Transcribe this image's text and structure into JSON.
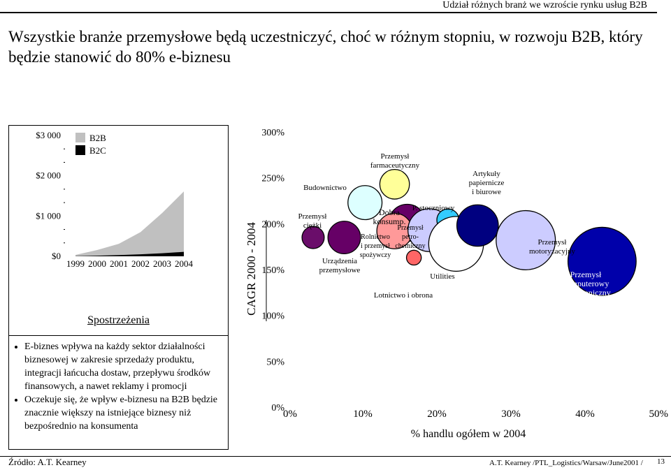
{
  "header": {
    "title": "Udział różnych branż we wzroście rynku usług B2B"
  },
  "slide": {
    "title": "Wszystkie branże przemysłowe będą uczestniczyć, choć w różnym stopniu, w rozwoju B2B, który będzie stanowić do 80% e-biznesu"
  },
  "insights": {
    "title": "Spostrzeżenia",
    "bullets": [
      "E-biznes wpływa na każdy sektor działalności biznesowej w zakresie sprzedaży produktu, integracji łańcucha dostaw, przepływu środków finansowych, a nawet reklamy i promocji",
      "Oczekuje się, że wpływ e-biznesu na B2B będzie znacznie większy na istniejące biznesy niż bezpośrednio na konsumenta"
    ]
  },
  "footer": {
    "source": "Źródło: A.T. Kearney",
    "credit": "A.T. Kearney /PTL_Logistics/Warsaw/June2001 /",
    "page": "13"
  },
  "colors": {
    "b2b": "#c0c0c0",
    "b2c": "#000000"
  },
  "chart_data": [
    {
      "type": "area",
      "x": [
        "1999",
        "2000",
        "2001",
        "2002",
        "2003",
        "2004"
      ],
      "y_ticks": [
        "$0",
        "$1 000",
        "$2 000",
        "$3 000"
      ],
      "ylim": [
        0,
        3000
      ],
      "series": [
        {
          "name": "B2B",
          "color": "#c0c0c0",
          "values": [
            30,
            140,
            280,
            550,
            1000,
            1500
          ]
        },
        {
          "name": "B2C",
          "color": "#000000",
          "values": [
            5,
            15,
            30,
            50,
            75,
            110
          ]
        }
      ]
    },
    {
      "type": "scatter",
      "xlabel": "% handlu ogółem w 2004",
      "ylabel": "CAGR 2000 - 2004",
      "x_ticks": [
        "0%",
        "10%",
        "20%",
        "30%",
        "40%",
        "50%"
      ],
      "y_ticks": [
        "0%",
        "50%",
        "100%",
        "150%",
        "200%",
        "250%",
        "300%"
      ],
      "xlim": [
        0,
        50
      ],
      "ylim": [
        0,
        300
      ],
      "points": [
        {
          "label": "Przemysł ciężki",
          "x": 3.3,
          "y": 185,
          "r": 1.5,
          "color": "#6a0d6a"
        },
        {
          "label": "Urządzenia przemysłowe",
          "x": 7.5,
          "y": 185,
          "r": 2.2,
          "color": "#660066"
        },
        {
          "label": "Budownictwo",
          "x": 10.3,
          "y": 223,
          "r": 2.3,
          "color": "#ddffff"
        },
        {
          "label": "Przemysł farmaceutyczny",
          "x": 14.3,
          "y": 243,
          "r": 2.0,
          "color": "#ffff99"
        },
        {
          "label": "Dobra konsump.",
          "x": 16.0,
          "y": 201,
          "r": 2.5,
          "color": "#660066"
        },
        {
          "label": "Rolnictwo i przemysł spożywczy",
          "x": 14.3,
          "y": 192,
          "r": 2.4,
          "color": "#ff9999"
        },
        {
          "label": "Przemysł petro- chemiczny",
          "x": 19.0,
          "y": 193,
          "r": 2.9,
          "color": "#ccccff"
        },
        {
          "label": "P. stoczniowy",
          "x": 21.5,
          "y": 204,
          "r": 1.5,
          "color": "#33ccff"
        },
        {
          "label": "Utilities",
          "x": 16.9,
          "y": 163,
          "r": 1.0,
          "color": "#ff6666"
        },
        {
          "label": "Lotnictwo i obrona",
          "x": 22.6,
          "y": 178,
          "r": 3.7,
          "color": "#ffffff"
        },
        {
          "label": "Artykuły papiernicze i biurowe",
          "x": 25.5,
          "y": 198,
          "r": 2.8,
          "color": "#000080"
        },
        {
          "label": "Przemysł motoryzacyjny",
          "x": 32.0,
          "y": 182,
          "r": 4.0,
          "color": "#ccccff"
        },
        {
          "label": "Przemysł komputerowy i elektroniczny",
          "x": 42.3,
          "y": 159,
          "r": 4.6,
          "color": "#0000aa"
        }
      ],
      "labels": {
        "heavy": "Przemysł ciężki",
        "industrial": "Urządzenia przemysłowe",
        "construction": "Budownictwo",
        "pharma": "Przemysł farmaceutyczny",
        "consumer": "Dobra konsump.",
        "agri": "Rolnictwo i przemysł spożywczy",
        "petro": "Przemysł petro- chemiczny",
        "ship": "P. stoczniowy",
        "utilities": "Utilities",
        "aero": "Lotnictwo i obrona",
        "paper": "Artykuły papiernicze i biurowe",
        "auto": "Przemysł motoryzacyjny",
        "computer": "Przemysł komputerowy i elektroniczny"
      }
    }
  ]
}
